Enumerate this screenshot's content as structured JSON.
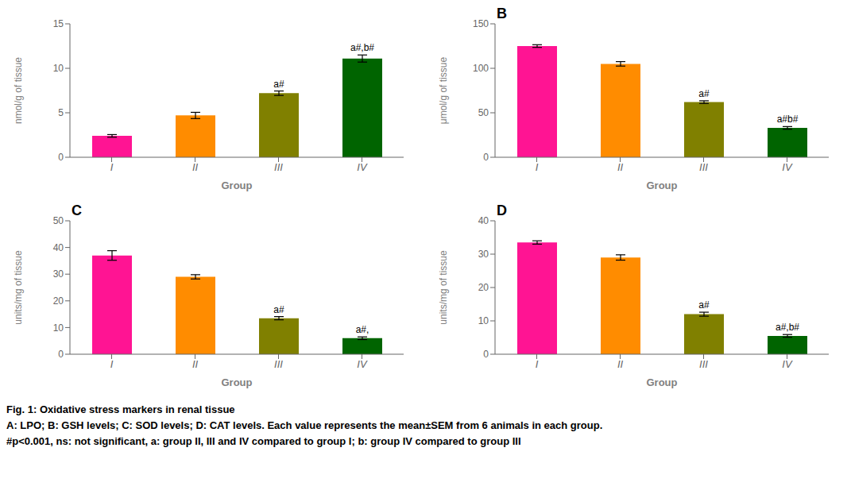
{
  "chart_data": [
    {
      "type": "bar",
      "xlabel": "Group",
      "ylabel": "nmol/g of tissue",
      "categories": [
        "I",
        "II",
        "III",
        "IV"
      ],
      "values": [
        2.4,
        4.7,
        7.2,
        11.1
      ],
      "errors": [
        0.15,
        0.35,
        0.25,
        0.4
      ],
      "annotations": [
        null,
        null,
        "a#",
        "a#,b#"
      ],
      "colors": [
        "#FF1493",
        "#FF8C00",
        "#808000",
        "#006400"
      ],
      "ylim": [
        0,
        15
      ],
      "yticks": [
        0,
        5,
        10,
        15
      ]
    },
    {
      "type": "bar",
      "title": "B",
      "xlabel": "Group",
      "ylabel": "μmol/g of tissue",
      "categories": [
        "I",
        "II",
        "III",
        "IV"
      ],
      "values": [
        125.0,
        105.0,
        62.0,
        33.0
      ],
      "errors": [
        1.5,
        2.5,
        1.5,
        1.5
      ],
      "annotations": [
        null,
        null,
        "a#",
        "a#b#"
      ],
      "colors": [
        "#FF1493",
        "#FF8C00",
        "#808000",
        "#006400"
      ],
      "ylim": [
        0,
        150
      ],
      "yticks": [
        0,
        50,
        100,
        150
      ]
    },
    {
      "type": "bar",
      "title": "C",
      "xlabel": "Group",
      "ylabel": "units/mg of tissue",
      "categories": [
        "I",
        "II",
        "III",
        "IV"
      ],
      "values": [
        37.0,
        29.0,
        13.5,
        6.0
      ],
      "errors": [
        1.8,
        0.8,
        0.6,
        0.5
      ],
      "annotations": [
        null,
        null,
        "a#",
        "a#,"
      ],
      "colors": [
        "#FF1493",
        "#FF8C00",
        "#808000",
        "#006400"
      ],
      "ylim": [
        0,
        50
      ],
      "yticks": [
        0,
        10,
        20,
        30,
        40,
        50
      ]
    },
    {
      "type": "bar",
      "title": "D",
      "xlabel": "Group",
      "ylabel": "units/mg of tissue",
      "categories": [
        "I",
        "II",
        "III",
        "IV"
      ],
      "values": [
        33.5,
        29.0,
        12.0,
        5.5
      ],
      "errors": [
        0.5,
        0.8,
        0.6,
        0.4
      ],
      "annotations": [
        null,
        null,
        "a#",
        "a#,b#"
      ],
      "colors": [
        "#FF1493",
        "#FF8C00",
        "#808000",
        "#006400"
      ],
      "ylim": [
        0,
        40
      ],
      "yticks": [
        0,
        10,
        20,
        30,
        40
      ]
    }
  ],
  "caption": [
    "Fig. 1: Oxidative stress markers in renal tissue",
    "A: LPO; B: GSH levels; C: SOD levels; D: CAT levels. Each value represents the mean±SEM from 6 animals in each group.",
    "#p<0.001, ns: not significant, a: group II, III and IV compared to group I; b: group IV compared to group III"
  ]
}
